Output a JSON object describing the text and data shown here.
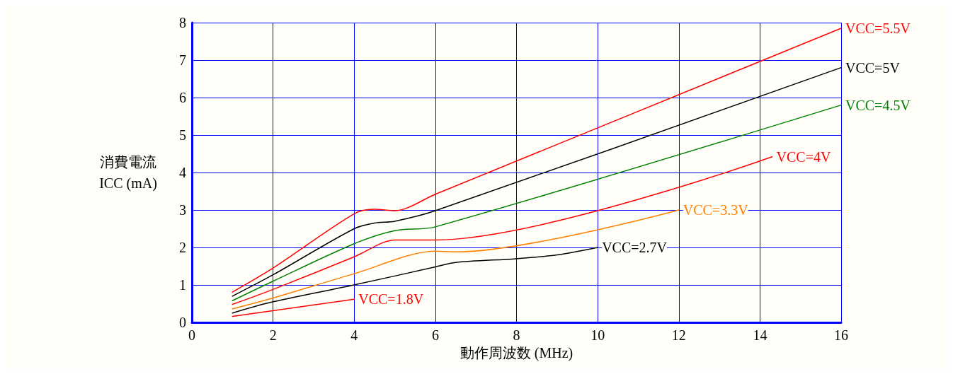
{
  "chart_data": {
    "type": "line",
    "xlabel": "動作周波数 (MHz)",
    "ylabel": "消費電流\nICC (mA)",
    "xlim": [
      0,
      16
    ],
    "xticks": [
      0,
      2,
      4,
      6,
      8,
      10,
      12,
      14,
      16
    ],
    "ylim": [
      0,
      8
    ],
    "yticks": [
      0,
      1,
      2,
      3,
      4,
      5,
      6,
      7,
      8
    ],
    "grid": true,
    "legend": false,
    "marker": "none",
    "line_style": "solid",
    "series": [
      {
        "name": "VCC=5.5V",
        "color": "#ff0000",
        "x": [
          1,
          2,
          4,
          4.5,
          5,
          6,
          16
        ],
        "values": [
          0.81,
          1.45,
          2.9,
          3.02,
          2.98,
          3.42,
          7.85
        ]
      },
      {
        "name": "VCC=5V",
        "color": "#000000",
        "x": [
          1,
          2,
          4,
          4.5,
          5,
          6,
          16
        ],
        "values": [
          0.7,
          1.27,
          2.5,
          2.65,
          2.7,
          2.98,
          6.8
        ]
      },
      {
        "name": "VCC=4.5V",
        "color": "#008000",
        "x": [
          1,
          2,
          4,
          5,
          6,
          16
        ],
        "values": [
          0.58,
          1.1,
          2.1,
          2.45,
          2.55,
          5.8
        ]
      },
      {
        "name": "VCC=4V",
        "color": "#ff0000",
        "x": [
          1,
          2,
          4,
          5,
          6,
          14.3
        ],
        "values": [
          0.48,
          0.88,
          1.75,
          2.2,
          2.2,
          4.42
        ]
      },
      {
        "name": "VCC=3.3V",
        "color": "#ff8000",
        "x": [
          1,
          2,
          4,
          6,
          6.5,
          12
        ],
        "values": [
          0.36,
          0.65,
          1.3,
          1.9,
          1.88,
          3.0
        ]
      },
      {
        "name": "VCC=2.7V",
        "color": "#000000",
        "x": [
          1,
          2,
          4,
          6,
          6.5,
          8,
          9,
          10
        ],
        "values": [
          0.25,
          0.55,
          1.0,
          1.48,
          1.6,
          1.7,
          1.8,
          2.0
        ]
      },
      {
        "name": "VCC=1.8V",
        "color": "#ff0000",
        "x": [
          1,
          4
        ],
        "values": [
          0.16,
          0.62
        ]
      }
    ]
  }
}
